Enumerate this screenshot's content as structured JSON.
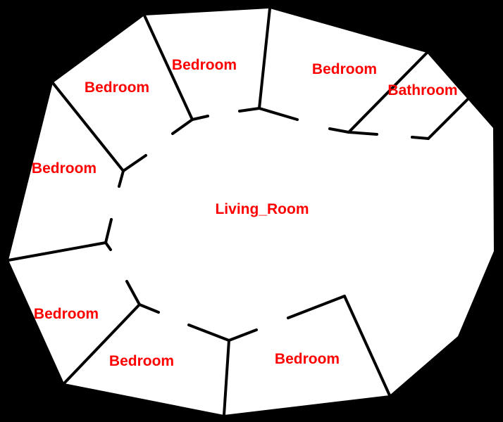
{
  "colors": {
    "background": "#000000",
    "floor": "#ffffff",
    "wall": "#000000",
    "label": "#ff0000"
  },
  "rooms": [
    {
      "id": "bedroom-1",
      "label": "Bedroom"
    },
    {
      "id": "bedroom-2",
      "label": "Bedroom"
    },
    {
      "id": "bedroom-3",
      "label": "Bedroom"
    },
    {
      "id": "bathroom",
      "label": "Bathroom"
    },
    {
      "id": "bedroom-4",
      "label": "Bedroom"
    },
    {
      "id": "living-room",
      "label": "Living_Room"
    },
    {
      "id": "bedroom-5",
      "label": "Bedroom"
    },
    {
      "id": "bedroom-6",
      "label": "Bedroom"
    },
    {
      "id": "bedroom-7",
      "label": "Bedroom"
    }
  ]
}
